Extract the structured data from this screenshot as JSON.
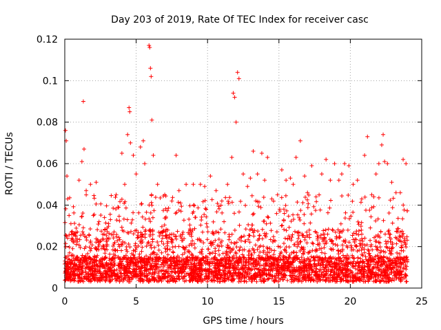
{
  "chart_data": {
    "type": "scatter",
    "title": "Day 203 of 2019, Rate Of TEC Index for receiver casc",
    "xlabel": "GPS time / hours",
    "ylabel": "ROTI / TECUs",
    "xlim": [
      0,
      25
    ],
    "ylim": [
      0,
      0.12
    ],
    "x_ticks": [
      "0",
      "5",
      "10",
      "15",
      "20",
      "25"
    ],
    "y_ticks": [
      "0",
      "0.02",
      "0.04",
      "0.06",
      "0.08",
      "0.1",
      "0.12"
    ],
    "grid": true,
    "marker": "+",
    "color": "#ff0000",
    "series": [
      {
        "x": [
          0.05,
          0.1,
          0.15,
          0.2,
          0.3,
          0.5,
          0.8,
          1.0,
          1.2,
          1.3,
          1.35,
          1.5,
          1.8,
          2.0,
          2.2,
          2.4,
          2.8,
          3.2,
          3.6,
          4.0,
          4.2,
          4.4,
          4.5,
          4.55,
          4.6,
          4.8,
          5.0,
          5.3,
          5.5,
          5.6,
          5.9,
          5.95,
          6.0,
          6.05,
          6.1,
          6.2,
          6.5,
          7.0,
          7.5,
          7.8,
          8.0,
          8.5,
          9.0,
          9.5,
          9.8,
          10.2,
          10.6,
          11.0,
          11.4,
          11.7,
          11.8,
          11.9,
          12.0,
          12.1,
          12.2,
          12.5,
          12.8,
          13.0,
          13.2,
          13.5,
          13.8,
          14.0,
          14.2,
          14.5,
          14.9,
          15.2,
          15.5,
          15.8,
          16.0,
          16.2,
          16.5,
          16.8,
          17.0,
          17.3,
          17.6,
          18.0,
          18.3,
          18.6,
          18.9,
          19.2,
          19.4,
          19.6,
          19.9,
          20.2,
          20.5,
          20.8,
          21.0,
          21.2,
          21.5,
          21.8,
          22.0,
          22.2,
          22.3,
          22.4,
          22.6,
          22.9,
          23.2,
          23.5,
          23.7,
          23.9
        ],
        "y": [
          0.076,
          0.071,
          0.054,
          0.043,
          0.035,
          0.024,
          0.021,
          0.052,
          0.061,
          0.09,
          0.067,
          0.047,
          0.05,
          0.035,
          0.051,
          0.032,
          0.028,
          0.033,
          0.045,
          0.065,
          0.05,
          0.074,
          0.087,
          0.085,
          0.07,
          0.064,
          0.055,
          0.068,
          0.071,
          0.06,
          0.117,
          0.116,
          0.106,
          0.102,
          0.081,
          0.064,
          0.05,
          0.045,
          0.042,
          0.064,
          0.047,
          0.05,
          0.05,
          0.05,
          0.049,
          0.054,
          0.047,
          0.042,
          0.05,
          0.063,
          0.094,
          0.092,
          0.08,
          0.104,
          0.101,
          0.055,
          0.049,
          0.053,
          0.066,
          0.055,
          0.065,
          0.052,
          0.063,
          0.043,
          0.045,
          0.057,
          0.052,
          0.053,
          0.05,
          0.063,
          0.071,
          0.054,
          0.046,
          0.059,
          0.044,
          0.055,
          0.062,
          0.052,
          0.06,
          0.052,
          0.055,
          0.06,
          0.059,
          0.05,
          0.052,
          0.043,
          0.064,
          0.073,
          0.045,
          0.055,
          0.06,
          0.069,
          0.074,
          0.061,
          0.06,
          0.051,
          0.046,
          0.046,
          0.062,
          0.06
        ]
      }
    ]
  }
}
